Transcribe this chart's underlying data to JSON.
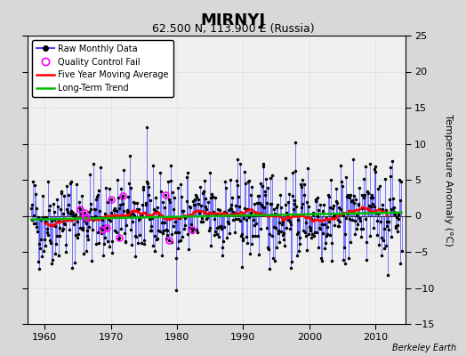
{
  "title": "MIRNYJ",
  "subtitle": "62.500 N, 113.900 E (Russia)",
  "ylabel": "Temperature Anomaly (°C)",
  "xlabel_credit": "Berkeley Earth",
  "xlim": [
    1957.5,
    2014.5
  ],
  "ylim": [
    -15,
    25
  ],
  "yticks": [
    -15,
    -10,
    -5,
    0,
    5,
    10,
    15,
    20,
    25
  ],
  "xticks": [
    1960,
    1970,
    1980,
    1990,
    2000,
    2010
  ],
  "bg_color": "#d8d8d8",
  "plot_bg_color": "#f0f0f0",
  "raw_color": "#4444ff",
  "raw_line_alpha": 0.7,
  "moving_avg_color": "#ff0000",
  "trend_color": "#00bb00",
  "qc_fail_color": "#ff00ff",
  "seed": 42
}
